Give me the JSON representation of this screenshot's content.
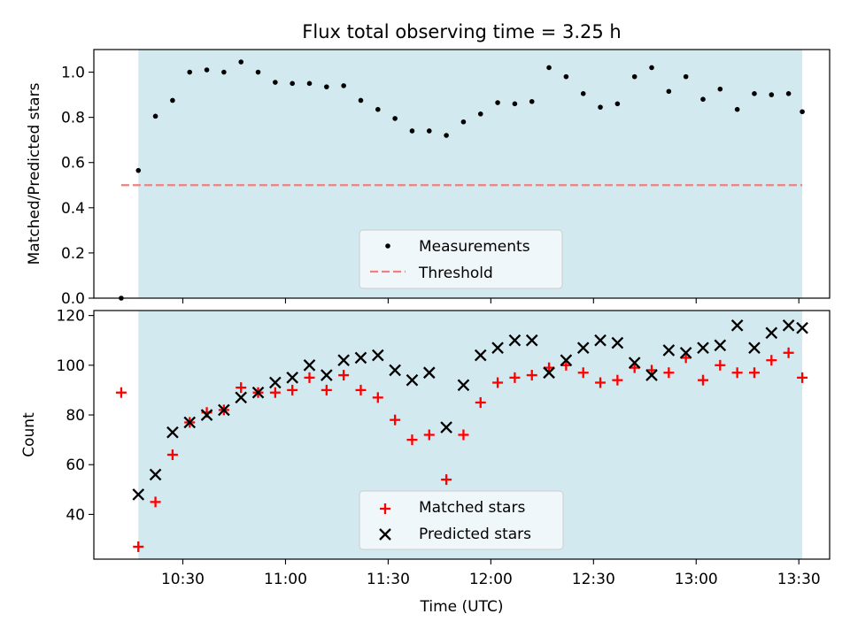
{
  "chart_data": [
    {
      "type": "scatter",
      "title": "Flux total observing time = 3.25 h",
      "xlabel": "",
      "ylabel": "Matched/Predicted stars",
      "ylim": [
        0,
        1.1
      ],
      "yticks": [
        "0.0",
        "0.2",
        "0.4",
        "0.6",
        "0.8",
        "1.0"
      ],
      "shaded_region": {
        "x_start": "10:17",
        "x_end": "13:31",
        "color": "#d3e9f0"
      },
      "threshold": {
        "name": "Threshold",
        "value": 0.5,
        "x_start": "10:12",
        "x_end": "13:31",
        "color": "#f08080"
      },
      "series": [
        {
          "name": "Measurements",
          "color": "#000000",
          "x": [
            "10:12",
            "10:17",
            "10:22",
            "10:27",
            "10:32",
            "10:37",
            "10:42",
            "10:47",
            "10:52",
            "10:57",
            "11:02",
            "11:07",
            "11:12",
            "11:17",
            "11:22",
            "11:27",
            "11:32",
            "11:37",
            "11:42",
            "11:47",
            "11:52",
            "11:57",
            "12:02",
            "12:07",
            "12:12",
            "12:17",
            "12:22",
            "12:27",
            "12:32",
            "12:37",
            "12:42",
            "12:47",
            "12:52",
            "12:57",
            "13:02",
            "13:07",
            "13:12",
            "13:17",
            "13:22",
            "13:27",
            "13:31"
          ],
          "y": [
            0.0,
            0.565,
            0.805,
            0.875,
            1.0,
            1.01,
            1.0,
            1.045,
            1.0,
            0.955,
            0.95,
            0.95,
            0.935,
            0.94,
            0.875,
            0.835,
            0.795,
            0.74,
            0.74,
            0.72,
            0.78,
            0.815,
            0.865,
            0.86,
            0.87,
            1.02,
            0.98,
            0.905,
            0.845,
            0.86,
            0.98,
            1.02,
            0.915,
            0.98,
            0.88,
            0.925,
            0.835,
            0.905,
            0.9,
            0.905,
            0.825
          ]
        }
      ]
    },
    {
      "type": "scatter",
      "xlabel": "Time (UTC)",
      "ylabel": "Count",
      "ylim": [
        22,
        122
      ],
      "yticks": [
        "40",
        "60",
        "80",
        "100",
        "120"
      ],
      "xticks": [
        "10:30",
        "11:00",
        "11:30",
        "12:00",
        "12:30",
        "13:00",
        "13:30"
      ],
      "shaded_region": {
        "x_start": "10:17",
        "x_end": "13:31",
        "color": "#d3e9f0"
      },
      "series": [
        {
          "name": "Matched stars",
          "marker": "+",
          "color": "#ff0000",
          "x": [
            "10:12",
            "10:17",
            "10:22",
            "10:27",
            "10:32",
            "10:37",
            "10:42",
            "10:47",
            "10:52",
            "10:57",
            "11:02",
            "11:07",
            "11:12",
            "11:17",
            "11:22",
            "11:27",
            "11:32",
            "11:37",
            "11:42",
            "11:47",
            "11:52",
            "11:57",
            "12:02",
            "12:07",
            "12:12",
            "12:17",
            "12:22",
            "12:27",
            "12:32",
            "12:37",
            "12:42",
            "12:47",
            "12:52",
            "12:57",
            "13:02",
            "13:07",
            "13:12",
            "13:17",
            "13:22",
            "13:27",
            "13:31"
          ],
          "y": [
            89,
            27,
            45,
            64,
            77,
            81,
            82,
            91,
            89,
            89,
            90,
            95,
            90,
            96,
            90,
            87,
            78,
            70,
            72,
            54,
            72,
            85,
            93,
            95,
            96,
            99,
            100,
            97,
            93,
            94,
            99,
            98,
            97,
            103,
            94,
            100,
            97,
            97,
            102,
            105,
            95
          ]
        },
        {
          "name": "Predicted stars",
          "marker": "x",
          "color": "#000000",
          "x": [
            "10:17",
            "10:22",
            "10:27",
            "10:32",
            "10:37",
            "10:42",
            "10:47",
            "10:52",
            "10:57",
            "11:02",
            "11:07",
            "11:12",
            "11:17",
            "11:22",
            "11:27",
            "11:32",
            "11:37",
            "11:42",
            "11:47",
            "11:52",
            "11:57",
            "12:02",
            "12:07",
            "12:12",
            "12:17",
            "12:22",
            "12:27",
            "12:32",
            "12:37",
            "12:42",
            "12:47",
            "12:52",
            "12:57",
            "13:02",
            "13:07",
            "13:12",
            "13:17",
            "13:22",
            "13:27",
            "13:31"
          ],
          "y": [
            48,
            56,
            73,
            77,
            80,
            82,
            87,
            89,
            93,
            95,
            100,
            96,
            102,
            103,
            104,
            98,
            94,
            97,
            75,
            92,
            104,
            107,
            110,
            110,
            97,
            102,
            107,
            110,
            109,
            101,
            96,
            106,
            105,
            107,
            108,
            116,
            107,
            113,
            116,
            115
          ]
        }
      ]
    }
  ]
}
